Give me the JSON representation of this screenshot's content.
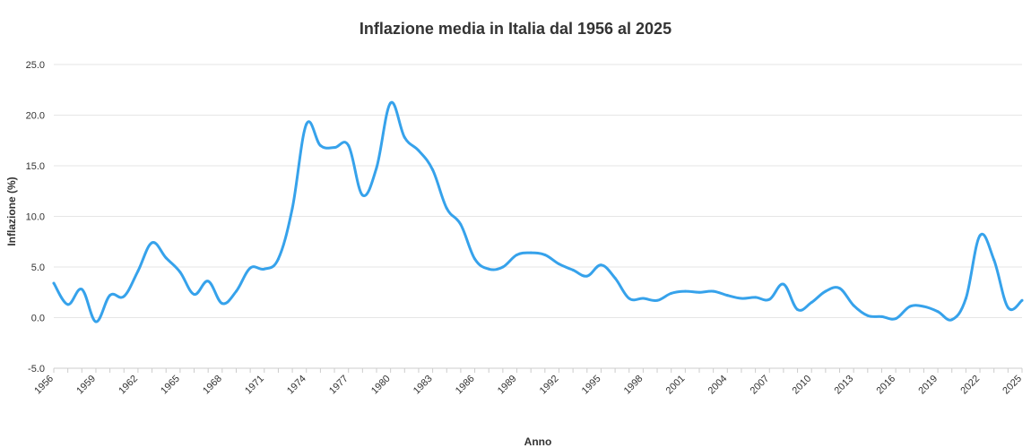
{
  "chart_data": {
    "type": "line",
    "title": "Inflazione media in Italia dal 1956 al 2025",
    "xlabel": "Anno",
    "ylabel": "Inflazione (%)",
    "ylim": [
      -5,
      25
    ],
    "yticks": [
      -5,
      0,
      5,
      10,
      15,
      20,
      25
    ],
    "ytick_labels": [
      "-5.0",
      "0.0",
      "5.0",
      "10.0",
      "15.0",
      "20.0",
      "25.0"
    ],
    "xlim": [
      1956,
      2025
    ],
    "xtick_labels": [
      "1956",
      "1959",
      "1962",
      "1965",
      "1968",
      "1971",
      "1974",
      "1977",
      "1980",
      "1983",
      "1986",
      "1989",
      "1992",
      "1995",
      "1998",
      "2001",
      "2004",
      "2007",
      "2010",
      "2013",
      "2016",
      "2019",
      "2022",
      "2025"
    ],
    "grid": true,
    "legend": "none",
    "x": [
      1956,
      1957,
      1958,
      1959,
      1960,
      1961,
      1962,
      1963,
      1964,
      1965,
      1966,
      1967,
      1968,
      1969,
      1970,
      1971,
      1972,
      1973,
      1974,
      1975,
      1976,
      1977,
      1978,
      1979,
      1980,
      1981,
      1982,
      1983,
      1984,
      1985,
      1986,
      1987,
      1988,
      1989,
      1990,
      1991,
      1992,
      1993,
      1994,
      1995,
      1996,
      1997,
      1998,
      1999,
      2000,
      2001,
      2002,
      2003,
      2004,
      2005,
      2006,
      2007,
      2008,
      2009,
      2010,
      2011,
      2012,
      2013,
      2014,
      2015,
      2016,
      2017,
      2018,
      2019,
      2020,
      2021,
      2022,
      2023,
      2024,
      2025
    ],
    "series": [
      {
        "color": "#36a2eb",
        "values": [
          3.4,
          1.3,
          2.8,
          -0.4,
          2.2,
          2.1,
          4.6,
          7.4,
          5.9,
          4.5,
          2.3,
          3.6,
          1.4,
          2.6,
          4.9,
          4.8,
          5.8,
          10.8,
          19.1,
          17.0,
          16.8,
          17.0,
          12.1,
          14.8,
          21.2,
          17.8,
          16.5,
          14.6,
          10.8,
          9.2,
          5.8,
          4.8,
          5.0,
          6.2,
          6.4,
          6.2,
          5.3,
          4.7,
          4.1,
          5.2,
          3.9,
          1.9,
          1.9,
          1.7,
          2.4,
          2.6,
          2.5,
          2.6,
          2.2,
          1.9,
          2.0,
          1.8,
          3.3,
          0.8,
          1.5,
          2.6,
          2.9,
          1.2,
          0.2,
          0.1,
          -0.1,
          1.1,
          1.1,
          0.6,
          -0.2,
          1.9,
          8.1,
          5.7,
          1.0,
          1.7
        ]
      }
    ]
  }
}
